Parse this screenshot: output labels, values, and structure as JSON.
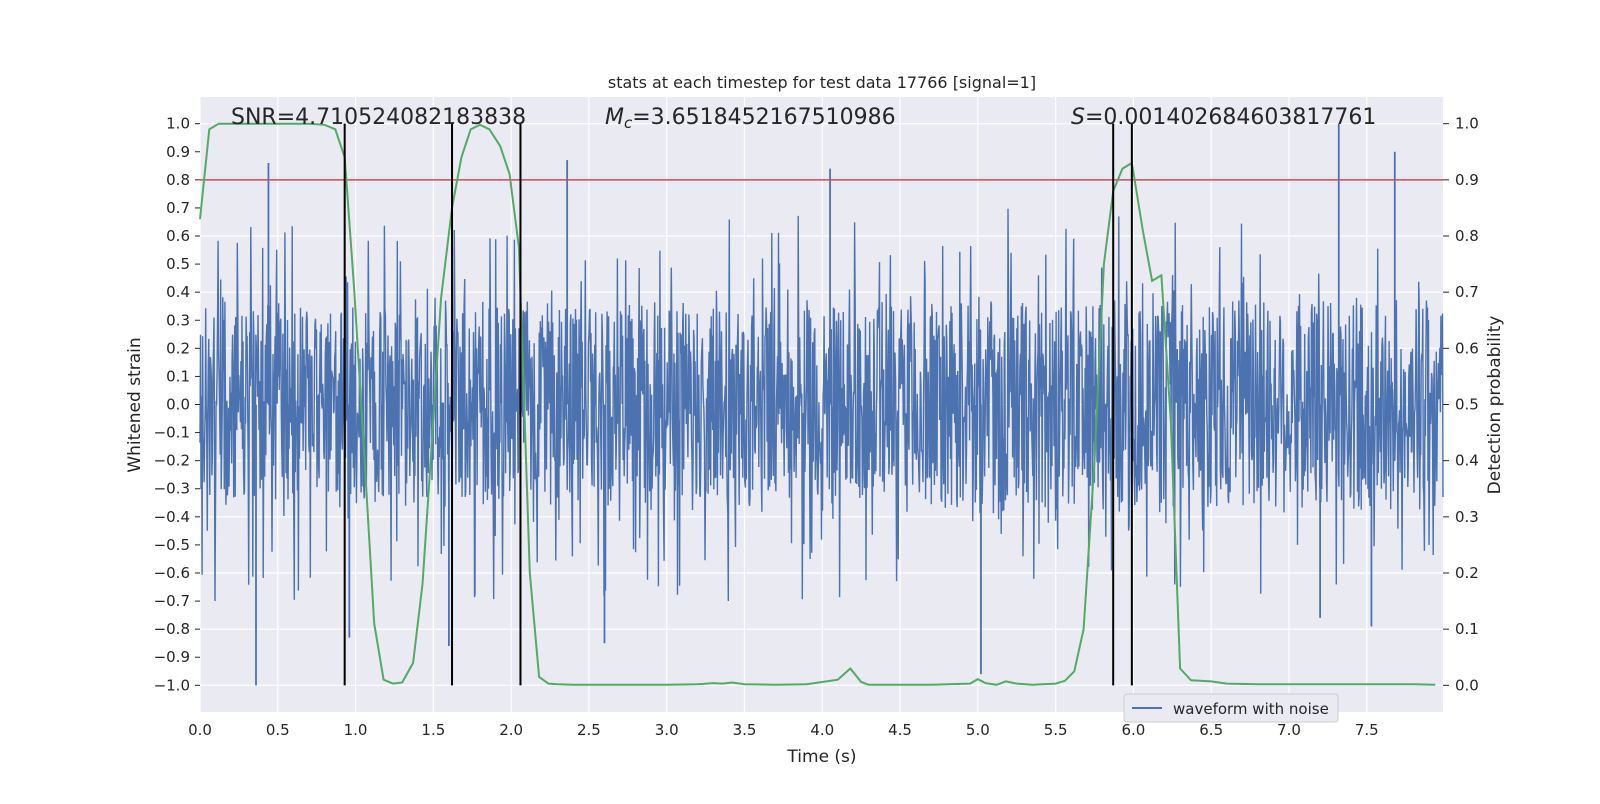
{
  "chart_data": {
    "type": "line",
    "title": "stats at each timestep for test data 17766 [signal=1]",
    "xlabel": "Time (s)",
    "ylabel": "Whitened strain",
    "y2label": "Detection probability",
    "xlim": [
      0.0,
      7.99
    ],
    "ylim": [
      -1.095,
      1.095
    ],
    "y2lim": [
      -0.0475,
      1.0475
    ],
    "xticks": [
      0.0,
      0.5,
      1.0,
      1.5,
      2.0,
      2.5,
      3.0,
      3.5,
      4.0,
      4.5,
      5.0,
      5.5,
      6.0,
      6.5,
      7.0,
      7.5
    ],
    "xtick_labels": [
      "0.0",
      "0.5",
      "1.0",
      "1.5",
      "2.0",
      "2.5",
      "3.0",
      "3.5",
      "4.0",
      "4.5",
      "5.0",
      "5.5",
      "6.0",
      "6.5",
      "7.0",
      "7.5"
    ],
    "yticks": [
      -1.0,
      -0.9,
      -0.8,
      -0.7,
      -0.6,
      -0.5,
      -0.4,
      -0.3,
      -0.2,
      -0.1,
      0.0,
      0.1,
      0.2,
      0.3,
      0.4,
      0.5,
      0.6,
      0.7,
      0.8,
      0.9,
      1.0
    ],
    "ytick_labels": [
      "−1.0",
      "−0.9",
      "−0.8",
      "−0.7",
      "−0.6",
      "−0.5",
      "−0.4",
      "−0.3",
      "−0.2",
      "−0.1",
      "0.0",
      "0.1",
      "0.2",
      "0.3",
      "0.4",
      "0.5",
      "0.6",
      "0.7",
      "0.8",
      "0.9",
      "1.0"
    ],
    "y2ticks": [
      0.0,
      0.1,
      0.2,
      0.3,
      0.4,
      0.5,
      0.6,
      0.7,
      0.8,
      0.9,
      1.0
    ],
    "y2tick_labels": [
      "0.0",
      "0.1",
      "0.2",
      "0.3",
      "0.4",
      "0.5",
      "0.6",
      "0.7",
      "0.8",
      "0.9",
      "1.0"
    ],
    "grid": true,
    "annotations": {
      "snr": "SNR=4.710524082183838",
      "mc_symbol": "M",
      "mc_sub": "c",
      "mc_value": "=3.6518452167510986",
      "s_symbol": "S",
      "s_value": "=0.001402684603817761"
    },
    "threshold": {
      "value": 0.9,
      "axis": "right",
      "color": "#c44e52"
    },
    "vertical_lines": [
      0.93,
      1.62,
      2.06,
      5.87,
      5.99
    ],
    "series": [
      {
        "name": "waveform with noise",
        "color": "#4c72b0",
        "axis": "left",
        "description": "dense whitened strain noise, typical envelope ~±0.4",
        "band": {
          "upper": 0.4,
          "lower": -0.4
        },
        "peaks": [
          {
            "x": 0.36,
            "y": -1.0
          },
          {
            "x": 0.44,
            "y": 0.86
          },
          {
            "x": 0.96,
            "y": -0.83
          },
          {
            "x": 1.6,
            "y": -0.86
          },
          {
            "x": 2.36,
            "y": 0.87
          },
          {
            "x": 2.6,
            "y": -0.85
          },
          {
            "x": 4.05,
            "y": 0.84
          },
          {
            "x": 5.02,
            "y": -0.96
          },
          {
            "x": 7.32,
            "y": 1.0
          },
          {
            "x": 7.68,
            "y": 0.9
          },
          {
            "x": 7.53,
            "y": -0.79
          },
          {
            "x": 7.2,
            "y": -0.76
          }
        ]
      },
      {
        "name": "detection probability",
        "color": "#55a868",
        "axis": "right",
        "x": [
          0.0,
          0.06,
          0.12,
          0.2,
          0.3,
          0.4,
          0.5,
          0.6,
          0.7,
          0.8,
          0.87,
          0.93,
          0.99,
          1.05,
          1.12,
          1.18,
          1.24,
          1.3,
          1.37,
          1.43,
          1.49,
          1.55,
          1.62,
          1.68,
          1.74,
          1.8,
          1.86,
          1.93,
          1.99,
          2.05,
          2.12,
          2.18,
          2.24,
          2.3,
          2.4,
          2.6,
          2.8,
          3.0,
          3.2,
          3.3,
          3.36,
          3.42,
          3.5,
          3.7,
          3.9,
          4.1,
          4.18,
          4.25,
          4.3,
          4.5,
          4.7,
          4.95,
          5.0,
          5.05,
          5.12,
          5.18,
          5.25,
          5.35,
          5.5,
          5.56,
          5.62,
          5.68,
          5.75,
          5.81,
          5.87,
          5.93,
          5.99,
          6.06,
          6.12,
          6.18,
          6.24,
          6.3,
          6.37,
          6.43,
          6.5,
          6.6,
          6.8,
          7.0,
          7.2,
          7.4,
          7.6,
          7.8,
          7.94
        ],
        "values": [
          0.83,
          0.99,
          1.0,
          1.0,
          1.0,
          1.0,
          1.0,
          1.0,
          1.0,
          0.998,
          0.99,
          0.94,
          0.71,
          0.44,
          0.11,
          0.01,
          0.003,
          0.005,
          0.04,
          0.18,
          0.43,
          0.69,
          0.85,
          0.94,
          0.99,
          0.998,
          0.99,
          0.96,
          0.91,
          0.78,
          0.2,
          0.015,
          0.003,
          0.002,
          0.001,
          0.001,
          0.001,
          0.001,
          0.002,
          0.004,
          0.003,
          0.005,
          0.002,
          0.001,
          0.002,
          0.01,
          0.03,
          0.006,
          0.001,
          0.001,
          0.001,
          0.003,
          0.011,
          0.004,
          0.001,
          0.007,
          0.003,
          0.001,
          0.003,
          0.008,
          0.025,
          0.1,
          0.4,
          0.75,
          0.88,
          0.92,
          0.93,
          0.81,
          0.72,
          0.73,
          0.47,
          0.03,
          0.009,
          0.008,
          0.007,
          0.003,
          0.002,
          0.002,
          0.002,
          0.002,
          0.002,
          0.002,
          0.001
        ]
      }
    ],
    "legend": {
      "placement": "lower-right",
      "entries": [
        "waveform with noise"
      ]
    }
  }
}
